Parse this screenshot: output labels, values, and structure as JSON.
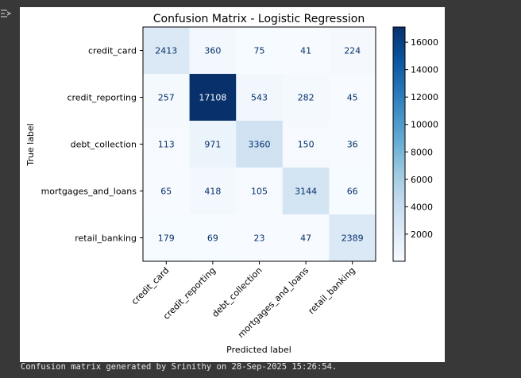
{
  "output": {
    "caption": "Confusion matrix generated by Srinithy on 28-Sep-2025 15:26:54.",
    "toggle_icon": "output-toggle-icon"
  },
  "chart_data": {
    "type": "heatmap",
    "title": "Confusion Matrix - Logistic Regression",
    "xlabel": "Predicted label",
    "ylabel": "True label",
    "row_labels": [
      "credit_card",
      "credit_reporting",
      "debt_collection",
      "mortgages_and_loans",
      "retail_banking"
    ],
    "col_labels": [
      "credit_card",
      "credit_reporting",
      "debt_collection",
      "mortgages_and_loans",
      "retail_banking"
    ],
    "values": [
      [
        2413,
        360,
        75,
        41,
        224
      ],
      [
        257,
        17108,
        543,
        282,
        45
      ],
      [
        113,
        971,
        3360,
        150,
        36
      ],
      [
        65,
        418,
        105,
        3144,
        66
      ],
      [
        179,
        69,
        23,
        47,
        2389
      ]
    ],
    "colormap": "Blues",
    "vmin": 23,
    "vmax": 17108,
    "colorbar_ticks": [
      "2000",
      "4000",
      "6000",
      "8000",
      "10000",
      "12000",
      "14000",
      "16000"
    ],
    "colorbar_tick_values": [
      2000,
      4000,
      6000,
      8000,
      10000,
      12000,
      14000,
      16000
    ]
  }
}
